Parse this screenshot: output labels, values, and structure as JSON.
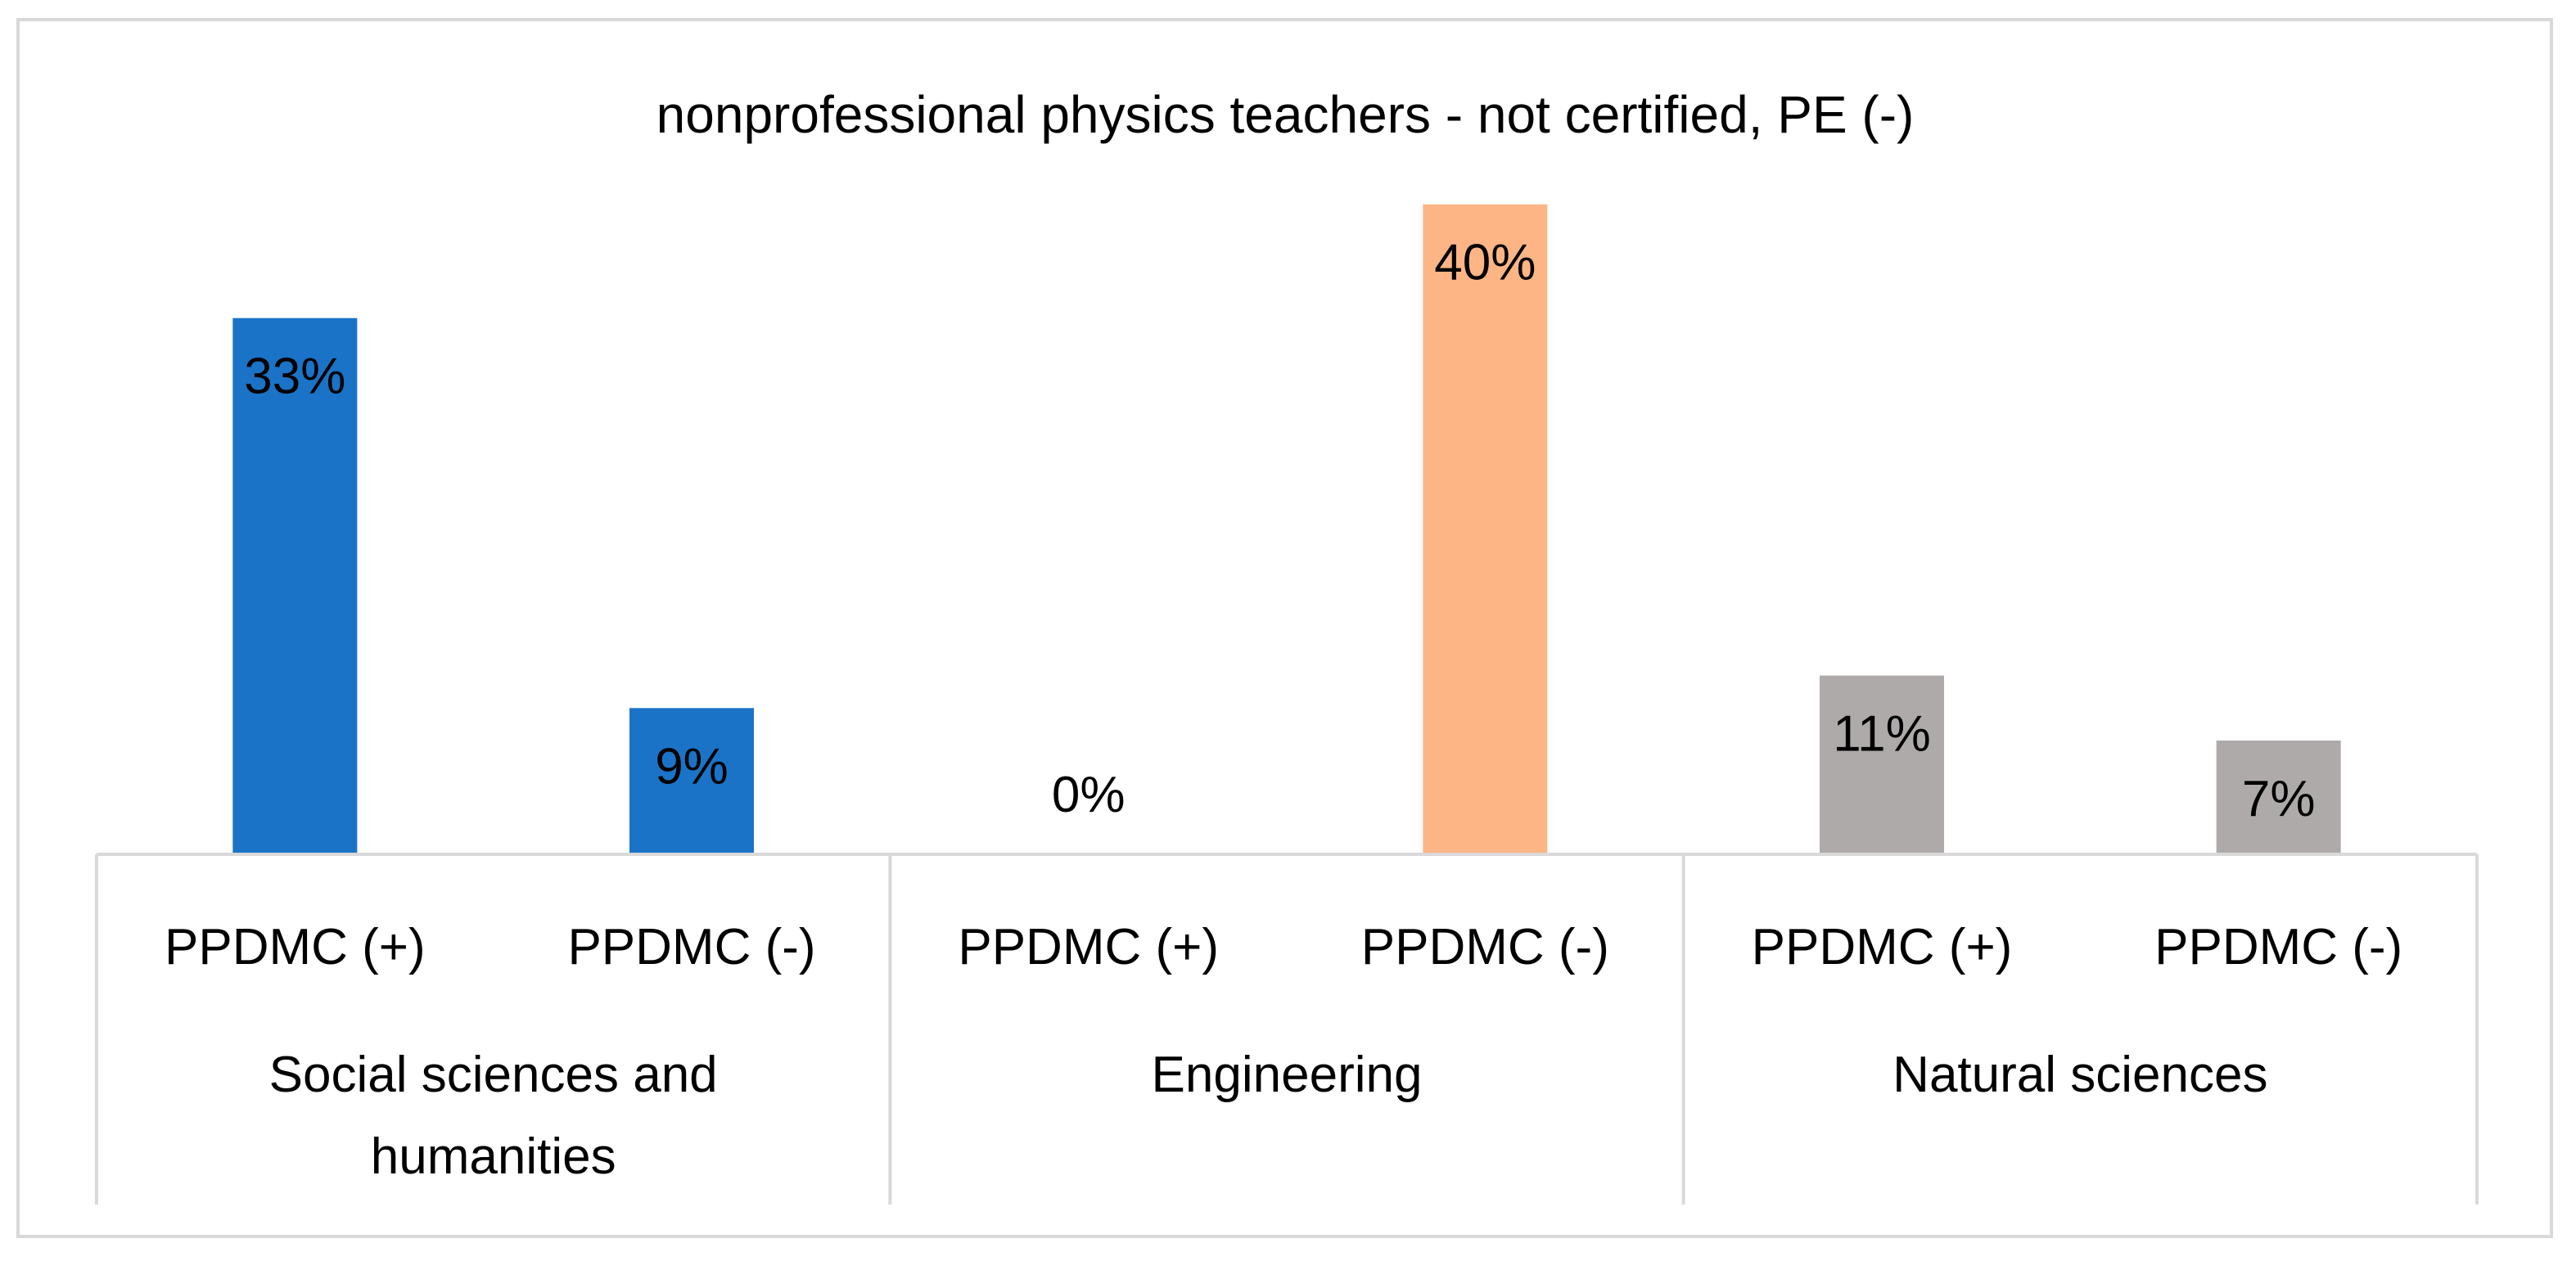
{
  "chart_data": {
    "type": "bar",
    "title": "nonprofessional physics teachers - not certified, PE (-)",
    "xlabel": "",
    "ylabel": "",
    "ylim": [
      0,
      0.42
    ],
    "grid": false,
    "legend": "none",
    "groups": [
      {
        "name": "Social sciences and humanities",
        "name_lines": [
          "Social sciences and",
          "humanities"
        ],
        "color": "#1a73c7",
        "bars": [
          {
            "category": "PPDMC (+)",
            "value": 0.33,
            "label": "33%"
          },
          {
            "category": "PPDMC (-)",
            "value": 0.09,
            "label": "9%"
          }
        ]
      },
      {
        "name": "Engineering",
        "name_lines": [
          "Engineering"
        ],
        "color": "#fdb585",
        "bars": [
          {
            "category": "PPDMC (+)",
            "value": 0.0,
            "label": "0%"
          },
          {
            "category": "PPDMC (-)",
            "value": 0.4,
            "label": "40%"
          }
        ]
      },
      {
        "name": "Natural sciences",
        "name_lines": [
          "Natural sciences"
        ],
        "color": "#aeaaaa",
        "bars": [
          {
            "category": "PPDMC (+)",
            "value": 0.11,
            "label": "11%"
          },
          {
            "category": "PPDMC (-)",
            "value": 0.07,
            "label": "7%"
          }
        ]
      }
    ]
  }
}
